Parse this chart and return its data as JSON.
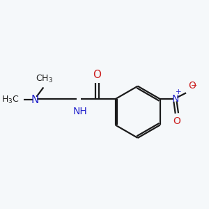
{
  "background_color": "#f5f8fa",
  "bond_color": "#1a1a1a",
  "n_color": "#2222cc",
  "o_color": "#cc2222",
  "figsize": [
    3.0,
    3.0
  ],
  "dpi": 100,
  "lw": 1.6,
  "xlim": [
    -0.05,
    1.05
  ],
  "ylim": [
    0.1,
    0.9
  ]
}
